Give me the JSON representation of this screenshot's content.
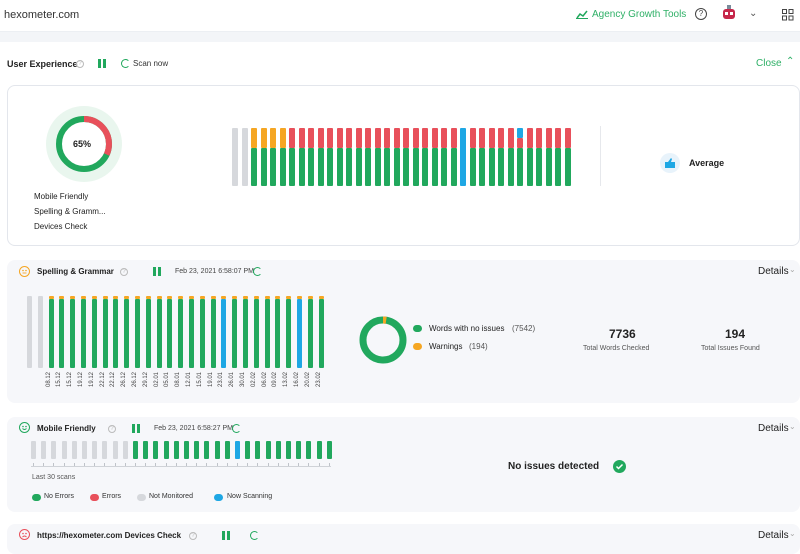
{
  "topbar": {
    "site": "hexometer.com",
    "agency": "Agency Growth Tools"
  },
  "ux": {
    "title": "User Experience",
    "scan_now": "Scan now",
    "close": "Close",
    "donut_pct": "65%",
    "items": [
      "Mobile Friendly",
      "Spelling & Gramm...",
      "Devices Check"
    ],
    "rating": "Average"
  },
  "spelling": {
    "title": "Spelling & Grammar",
    "date": "Feb 23, 2021 6:58:07 PM",
    "details": "Details",
    "dates": [
      "08.12",
      "15.12",
      "15.12",
      "19.12",
      "19.12",
      "22.12",
      "22.12",
      "26.12",
      "26.12",
      "29.12",
      "02.01",
      "05.01",
      "08.01",
      "12.01",
      "15.01",
      "19.01",
      "23.01",
      "26.01",
      "30.01",
      "02.02",
      "06.02",
      "09.02",
      "13.02",
      "16.02",
      "20.02",
      "23.02"
    ],
    "legend_ok": "Words with no issues",
    "legend_ok_count": "(7542)",
    "legend_warn": "Warnings",
    "legend_warn_count": "(194)",
    "stat1_value": "7736",
    "stat1_label": "Total Words Checked",
    "stat2_value": "194",
    "stat2_label": "Total Issues Found"
  },
  "mobile": {
    "title": "Mobile Friendly",
    "date": "Feb 23, 2021 6:58:27 PM",
    "details": "Details",
    "last_scans": "Last 30 scans",
    "status": "No issues detected",
    "legend": [
      "No Errors",
      "Errors",
      "Not Monitored",
      "Now Scanning"
    ]
  },
  "devices": {
    "title": "https://hexometer.com Devices Check",
    "details": "Details"
  },
  "colors": {
    "green": "#21a85d",
    "red": "#e8505b",
    "orange": "#f5a623",
    "blue": "#1ea7e4",
    "gray": "#d6d8dc"
  }
}
